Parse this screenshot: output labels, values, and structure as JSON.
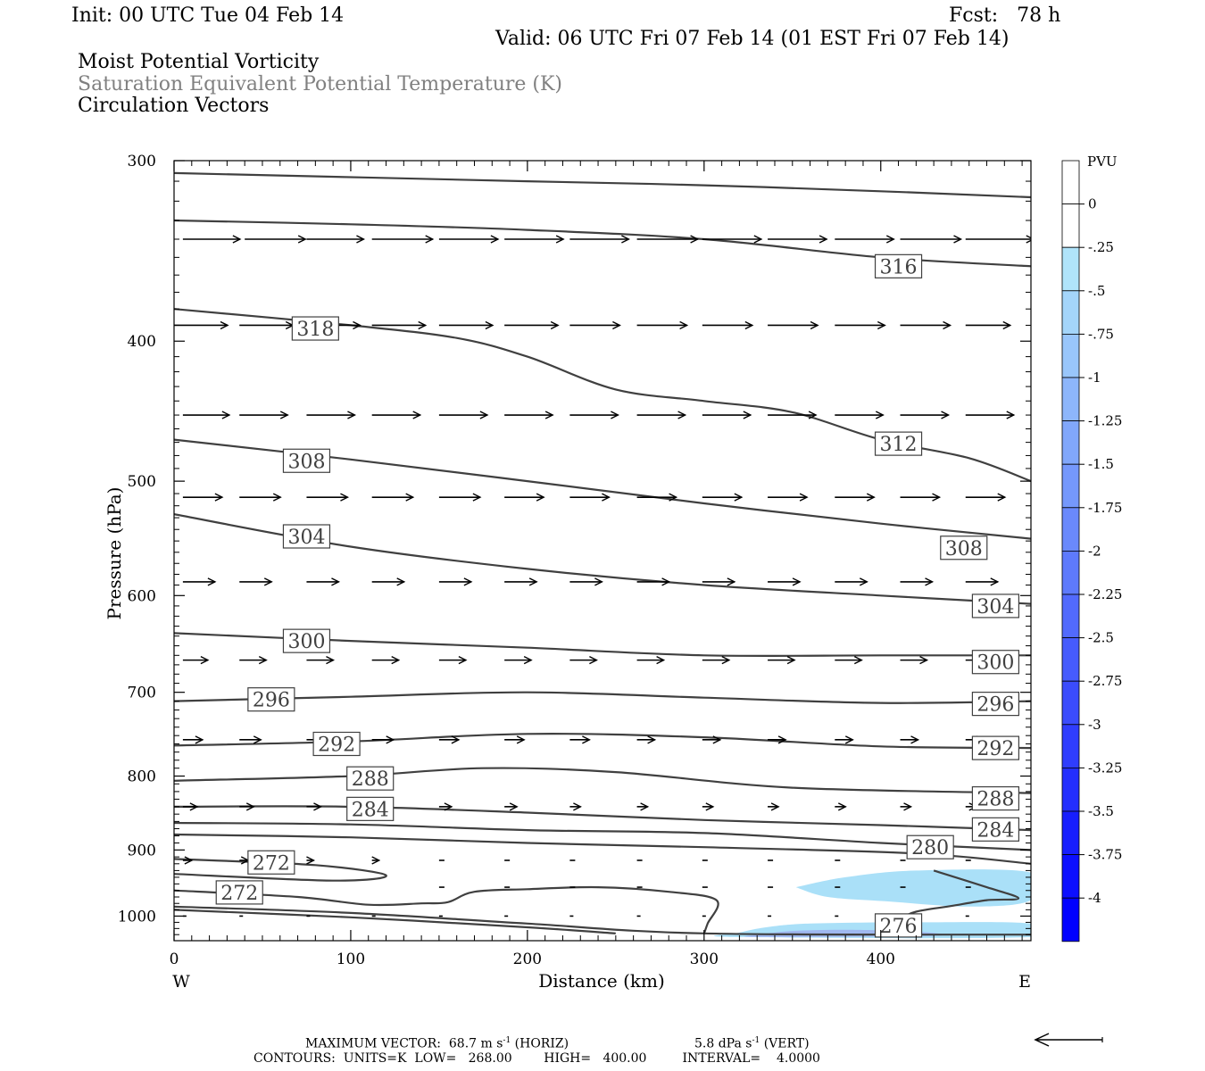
{
  "header": {
    "init": "Init: 00 UTC Tue 04 Feb 14",
    "fcst": "Fcst:   78 h",
    "valid": "Valid: 06 UTC Fri 07 Feb 14 (01 EST Fri 07 Feb 14)",
    "fields": [
      "Moist Potential Vorticity",
      "Saturation Equivalent Potential Temperature (K)",
      "Circulation Vectors"
    ]
  },
  "footer": {
    "max_vector": "MAXIMUM VECTOR:  68.7 m s",
    "horiz": "(HORIZ)",
    "vert_val": "5.8 dPa s",
    "vert": "(VERT)",
    "exponent": "-1",
    "contours": "CONTOURS:  UNITS=K  LOW=   268.00        HIGH=   400.00         INTERVAL=    4.0000"
  },
  "colors": {
    "contour": "#404040",
    "pv_025": "#aae0f8",
    "pv_05": "#a0b8f0",
    "pv_bar_bottom": "#0000ff"
  },
  "chart_data": {
    "type": "contour",
    "xlabel": "Distance (km)",
    "ylabel": "Pressure (hPa)",
    "xlim": [
      0,
      485
    ],
    "ylim": [
      1040,
      300
    ],
    "y_scale": "log",
    "x_ticks": [
      0,
      100,
      200,
      300,
      400
    ],
    "y_ticks": [
      300,
      400,
      500,
      600,
      700,
      800,
      900,
      1000
    ],
    "x_end_labels": {
      "left": "W",
      "right": "E"
    },
    "colorbar": {
      "title": "PVU",
      "labels": [
        "0",
        "-.25",
        "-.5",
        "-.75",
        "-1",
        "-1.25",
        "-1.5",
        "-1.75",
        "-2",
        "-2.25",
        "-2.5",
        "-2.75",
        "-3",
        "-3.25",
        "-3.5",
        "-3.75",
        "-4"
      ]
    },
    "contour_labels": [
      {
        "text": "316",
        "x": 410,
        "p": 355
      },
      {
        "text": "318",
        "x": 80,
        "p": 392
      },
      {
        "text": "312",
        "x": 410,
        "p": 471
      },
      {
        "text": "308",
        "x": 75,
        "p": 484
      },
      {
        "text": "304",
        "x": 75,
        "p": 546
      },
      {
        "text": "308",
        "x": 447,
        "p": 556
      },
      {
        "text": "304",
        "x": 465,
        "p": 610
      },
      {
        "text": "300",
        "x": 75,
        "p": 645
      },
      {
        "text": "300",
        "x": 465,
        "p": 667
      },
      {
        "text": "296",
        "x": 55,
        "p": 708
      },
      {
        "text": "296",
        "x": 465,
        "p": 713
      },
      {
        "text": "292",
        "x": 92,
        "p": 760
      },
      {
        "text": "292",
        "x": 465,
        "p": 765
      },
      {
        "text": "288",
        "x": 111,
        "p": 803
      },
      {
        "text": "288",
        "x": 465,
        "p": 829
      },
      {
        "text": "284",
        "x": 111,
        "p": 843
      },
      {
        "text": "284",
        "x": 465,
        "p": 871
      },
      {
        "text": "280",
        "x": 428,
        "p": 896
      },
      {
        "text": "272",
        "x": 55,
        "p": 918
      },
      {
        "text": "272",
        "x": 37,
        "p": 963
      },
      {
        "text": "276",
        "x": 410,
        "p": 1015
      }
    ],
    "isolines": [
      [
        [
          0,
          306
        ],
        [
          200,
          310
        ],
        [
          300,
          312
        ],
        [
          400,
          315
        ],
        [
          485,
          318
        ]
      ],
      [
        [
          0,
          330
        ],
        [
          100,
          332
        ],
        [
          200,
          335
        ],
        [
          300,
          340
        ],
        [
          400,
          350
        ],
        [
          485,
          355
        ]
      ],
      [
        [
          0,
          380
        ],
        [
          100,
          390
        ],
        [
          160,
          398
        ],
        [
          200,
          410
        ],
        [
          250,
          432
        ],
        [
          300,
          440
        ],
        [
          350,
          448
        ],
        [
          400,
          468
        ],
        [
          450,
          482
        ],
        [
          485,
          500
        ]
      ],
      [
        [
          0,
          468
        ],
        [
          100,
          483
        ],
        [
          200,
          500
        ],
        [
          300,
          518
        ],
        [
          400,
          535
        ],
        [
          485,
          548
        ]
      ],
      [
        [
          0,
          527
        ],
        [
          100,
          555
        ],
        [
          200,
          575
        ],
        [
          300,
          590
        ],
        [
          400,
          600
        ],
        [
          485,
          608
        ]
      ],
      [
        [
          0,
          637
        ],
        [
          100,
          645
        ],
        [
          200,
          652
        ],
        [
          300,
          660
        ],
        [
          400,
          660
        ],
        [
          485,
          660
        ]
      ],
      [
        [
          0,
          710
        ],
        [
          100,
          705
        ],
        [
          200,
          700
        ],
        [
          300,
          706
        ],
        [
          400,
          712
        ],
        [
          485,
          710
        ]
      ],
      [
        [
          0,
          762
        ],
        [
          100,
          757
        ],
        [
          200,
          748
        ],
        [
          300,
          752
        ],
        [
          400,
          763
        ],
        [
          485,
          765
        ]
      ],
      [
        [
          0,
          806
        ],
        [
          100,
          800
        ],
        [
          175,
          790
        ],
        [
          250,
          795
        ],
        [
          350,
          815
        ],
        [
          485,
          822
        ]
      ],
      [
        [
          0,
          840
        ],
        [
          100,
          840
        ],
        [
          200,
          848
        ],
        [
          300,
          858
        ],
        [
          400,
          865
        ],
        [
          485,
          872
        ]
      ],
      [
        [
          0,
          862
        ],
        [
          100,
          864
        ],
        [
          200,
          872
        ],
        [
          300,
          876
        ],
        [
          400,
          890
        ],
        [
          485,
          900
        ]
      ],
      [
        [
          0,
          878
        ],
        [
          100,
          882
        ],
        [
          200,
          890
        ],
        [
          300,
          896
        ],
        [
          420,
          905
        ],
        [
          485,
          920
        ]
      ],
      [
        [
          0,
          913
        ],
        [
          80,
          922
        ],
        [
          120,
          937
        ],
        [
          90,
          945
        ],
        [
          0,
          935
        ]
      ],
      [
        [
          0,
          960
        ],
        [
          70,
          970
        ],
        [
          110,
          982
        ],
        [
          140,
          980
        ],
        [
          155,
          978
        ],
        [
          170,
          962
        ],
        [
          200,
          958
        ],
        [
          240,
          955
        ],
        [
          280,
          962
        ],
        [
          307,
          975
        ],
        [
          302,
          1012
        ],
        [
          300,
          1028
        ]
      ],
      [
        [
          0,
          985
        ],
        [
          100,
          995
        ],
        [
          200,
          1012
        ],
        [
          300,
          1028
        ],
        [
          485,
          1030
        ]
      ],
      [
        [
          0,
          990
        ],
        [
          100,
          1002
        ],
        [
          200,
          1018
        ],
        [
          250,
          1028
        ]
      ],
      [
        [
          430,
          930
        ],
        [
          460,
          955
        ],
        [
          478,
          972
        ],
        [
          460,
          975
        ],
        [
          440,
          984
        ],
        [
          420,
          993
        ],
        [
          410,
          1005
        ],
        [
          400,
          1015
        ]
      ]
    ],
    "pv_regions": [
      {
        "value": "-.25",
        "polygon": [
          [
            352,
            955
          ],
          [
            380,
            940
          ],
          [
            420,
            930
          ],
          [
            485,
            933
          ],
          [
            485,
            975
          ],
          [
            450,
            985
          ],
          [
            405,
            977
          ],
          [
            370,
            970
          ]
        ]
      },
      {
        "value": "-.25",
        "polygon": [
          [
            318,
            1028
          ],
          [
            335,
            1018
          ],
          [
            360,
            1012
          ],
          [
            420,
            1010
          ],
          [
            485,
            1012
          ],
          [
            485,
            1034
          ],
          [
            318,
            1034
          ]
        ]
      },
      {
        "value": "-.5",
        "polygon": [
          [
            330,
            1030
          ],
          [
            350,
            1024
          ],
          [
            380,
            1022
          ],
          [
            420,
            1025
          ],
          [
            430,
            1032
          ],
          [
            330,
            1034
          ]
        ]
      }
    ],
    "vector_rows": [
      {
        "p": 340,
        "xs": [
          5,
          40,
          75,
          112,
          150,
          187,
          224,
          262,
          299,
          336,
          374,
          411,
          448
        ],
        "lengths": [
          32,
          34,
          32,
          34,
          33,
          33,
          33,
          34,
          33,
          33,
          33,
          34,
          38
        ]
      },
      {
        "p": 390,
        "xs": [
          0,
          37,
          75,
          112,
          150,
          187,
          224,
          262,
          299,
          336,
          374,
          411,
          448
        ],
        "lengths": [
          30,
          30,
          30,
          30,
          30,
          30,
          28,
          28,
          28,
          28,
          28,
          28,
          25
        ]
      },
      {
        "p": 450,
        "xs": [
          5,
          37,
          75,
          112,
          150,
          187,
          224,
          262,
          299,
          336,
          374,
          411,
          448
        ],
        "lengths": [
          26,
          27,
          27,
          27,
          27,
          27,
          27,
          27,
          27,
          27,
          27,
          27,
          27
        ]
      },
      {
        "p": 513,
        "xs": [
          5,
          37,
          75,
          112,
          150,
          187,
          224,
          262,
          299,
          336,
          374,
          411,
          448
        ],
        "lengths": [
          22,
          23,
          23,
          23,
          23,
          22,
          22,
          22,
          22,
          22,
          22,
          22,
          22
        ]
      },
      {
        "p": 587,
        "xs": [
          5,
          37,
          75,
          112,
          150,
          187,
          224,
          262,
          299,
          336,
          374,
          411,
          448
        ],
        "lengths": [
          18,
          18,
          18,
          18,
          18,
          18,
          18,
          18,
          18,
          18,
          18,
          18,
          18
        ]
      },
      {
        "p": 665,
        "xs": [
          5,
          37,
          75,
          112,
          150,
          187,
          224,
          262,
          299,
          336,
          374,
          411,
          448
        ],
        "lengths": [
          14,
          15,
          15,
          15,
          15,
          15,
          15,
          15,
          15,
          15,
          15,
          15,
          15
        ]
      },
      {
        "p": 755,
        "xs": [
          5,
          37,
          75,
          112,
          150,
          187,
          224,
          262,
          299,
          336,
          374,
          411,
          448
        ],
        "lengths": [
          11,
          12,
          12,
          12,
          11,
          11,
          11,
          10,
          10,
          10,
          10,
          10,
          10
        ]
      },
      {
        "p": 840,
        "xs": [
          5,
          37,
          75,
          112,
          150,
          187,
          224,
          262,
          299,
          336,
          374,
          411,
          448
        ],
        "lengths": [
          8,
          8,
          8,
          7,
          7,
          7,
          6,
          6,
          6,
          6,
          6,
          6,
          6
        ]
      },
      {
        "p": 915,
        "xs": [
          5,
          37,
          75,
          112,
          150,
          187,
          224,
          262,
          299,
          336,
          374,
          411,
          448
        ],
        "lengths": [
          5,
          5,
          4,
          4,
          3,
          3,
          3,
          3,
          3,
          3,
          3,
          3,
          3
        ]
      },
      {
        "p": 955,
        "xs": [
          150,
          187,
          224,
          262,
          299,
          336,
          374,
          411,
          448
        ],
        "lengths": [
          3,
          3,
          3,
          3,
          3,
          3,
          3,
          3,
          3
        ]
      },
      {
        "p": 1000,
        "xs": [
          5,
          37,
          75,
          112,
          150,
          187,
          224,
          262,
          299,
          336,
          374,
          411,
          448
        ],
        "lengths": [
          2,
          2,
          2,
          2,
          2,
          2,
          2,
          2,
          2,
          2,
          2,
          2,
          2
        ]
      }
    ]
  }
}
